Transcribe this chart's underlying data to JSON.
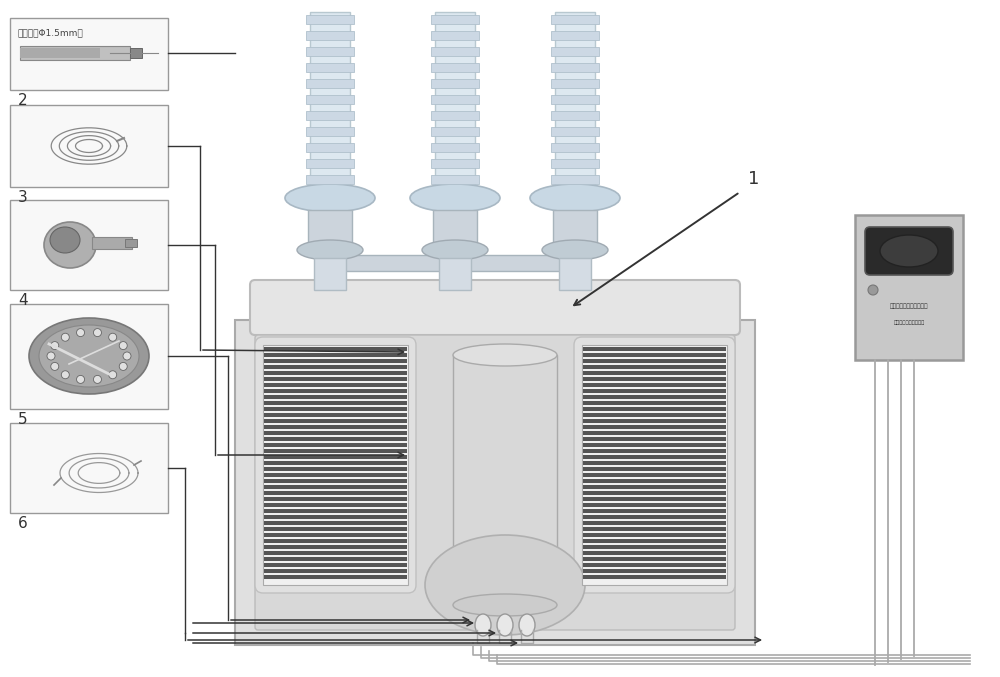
{
  "background_color": "#ffffff",
  "figure_width": 10.0,
  "figure_height": 6.77,
  "dpi": 100,
  "box2_text": "感温点（Φ1.5mm）",
  "transformer_body_fc": "#e8e8e8",
  "transformer_body_ec": "#aaaaaa",
  "winding_fc": "#555555",
  "winding_bg_fc": "#f0f0f0",
  "winding_outline_fc": "#e0e0e0",
  "bushing_fc": "#e0e8f0",
  "bushing_ec": "#c0c8d0",
  "monitor_fc": "#c8c8c8",
  "monitor_ec": "#999999",
  "line_color": "#333333",
  "arrow_color": "#333333",
  "cable_color": "#aaaaaa",
  "box_fc": "#f5f5f5",
  "box_ec": "#999999",
  "label_fontsize": 11,
  "center_cyl_fc": "#d8d8d8",
  "center_cyl_ec": "#bbbbbb",
  "sensor_fc": "#e0e0e0",
  "sensor_ec": "#999999"
}
